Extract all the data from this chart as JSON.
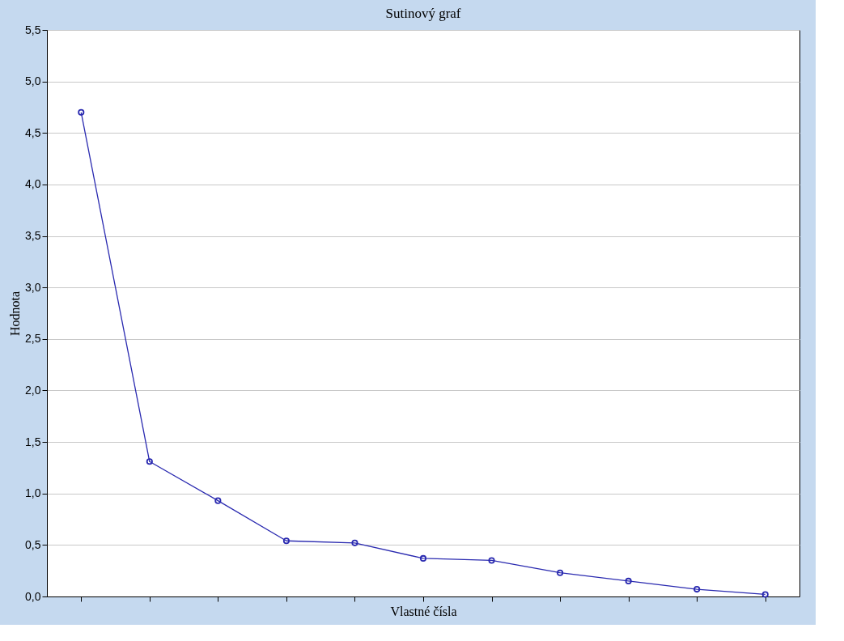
{
  "chart_data": {
    "type": "line",
    "title": "Sutinový graf",
    "xlabel": "Vlastné čísla",
    "ylabel": "Hodnota",
    "categories": [
      null,
      null,
      null,
      null,
      null,
      null,
      null,
      null,
      null,
      null,
      null
    ],
    "series": [
      {
        "color": "#2a2ab0",
        "values": [
          4.7,
          1.31,
          0.93,
          0.54,
          0.52,
          0.37,
          0.35,
          0.23,
          0.15,
          0.07,
          0.02
        ]
      }
    ],
    "ylim": [
      0,
      5.5
    ],
    "yticks": [
      {
        "value": 0,
        "label": "0,0"
      },
      {
        "value": 0.5,
        "label": "0,5"
      },
      {
        "value": 1,
        "label": "1,0"
      },
      {
        "value": 1.5,
        "label": "1,5"
      },
      {
        "value": 2,
        "label": "2,0"
      },
      {
        "value": 2.5,
        "label": "2,5"
      },
      {
        "value": 3,
        "label": "3,0"
      },
      {
        "value": 3.5,
        "label": "3,5"
      },
      {
        "value": 4,
        "label": "4,0"
      },
      {
        "value": 4.5,
        "label": "4,5"
      },
      {
        "value": 5,
        "label": "5,0"
      },
      {
        "value": 5.5,
        "label": "5,5"
      }
    ],
    "grid": "y",
    "marker": "circle",
    "line_style": "solid",
    "tick_labels": "y"
  }
}
